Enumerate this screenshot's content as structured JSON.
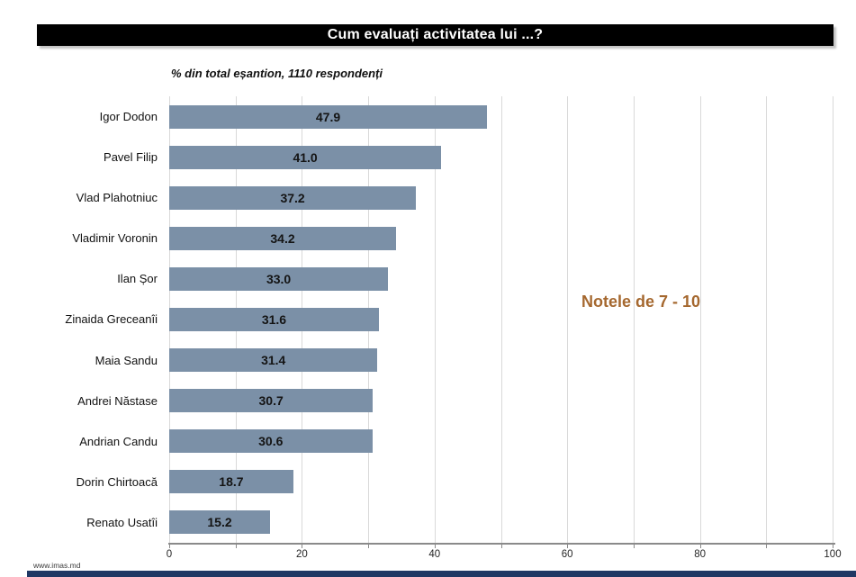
{
  "header": {
    "title": "Cum evaluați activitatea lui ...?"
  },
  "subtitle": "% din total eșantion, 1110 respondenți",
  "annotation": "Notele de 7 - 10",
  "footer": {
    "website": "www.imas.md"
  },
  "colors": {
    "title_bg": "#000000",
    "title_text": "#ffffff",
    "bar": "#7b90a7",
    "gridline": "#d9d9d9",
    "axis": "#8a8a8a",
    "annotation": "#a5682f",
    "footer_bar": "#1f3864"
  },
  "chart_data": {
    "type": "bar",
    "orientation": "horizontal",
    "title": "Cum evaluați activitatea lui ...?",
    "subtitle": "% din total eșantion, 1110 respondenți",
    "categories": [
      "Igor Dodon",
      "Pavel Filip",
      "Vlad Plahotniuc",
      "Vladimir Voronin",
      "Ilan Șor",
      "Zinaida Greceanîi",
      "Maia Sandu",
      "Andrei Năstase",
      "Andrian Candu",
      "Dorin Chirtoacă",
      "Renato Usatîi"
    ],
    "values": [
      47.9,
      41.0,
      37.2,
      34.2,
      33.0,
      31.6,
      31.4,
      30.7,
      30.6,
      18.7,
      15.2
    ],
    "value_decimals": 1,
    "xlim": [
      0,
      100
    ],
    "x_ticks": [
      0,
      20,
      40,
      60,
      80,
      100
    ],
    "gridline_interval": 10,
    "grid": true,
    "legend": false,
    "annotation": "Notele de 7 - 10",
    "xlabel": "",
    "ylabel": ""
  }
}
